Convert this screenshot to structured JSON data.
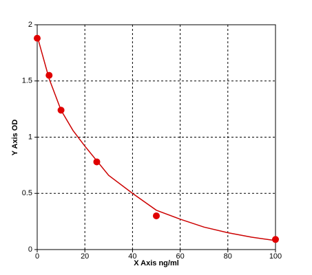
{
  "chart_data": {
    "type": "scatter",
    "x_label": "X Axis ng/ml",
    "y_label": "Y Axis OD",
    "xlim": [
      0,
      100
    ],
    "ylim": [
      0,
      2
    ],
    "xticks": [
      0,
      20,
      40,
      60,
      80,
      100
    ],
    "yticks": [
      0,
      0.5,
      1,
      1.5,
      2
    ],
    "grid": true,
    "series": [
      {
        "color": "#e00000",
        "x": [
          0,
          5,
          10,
          25,
          50,
          100
        ],
        "values": [
          1.88,
          1.55,
          1.24,
          0.78,
          0.3,
          0.09
        ]
      }
    ],
    "fit": {
      "color": "#cc0000",
      "x": [
        0,
        5,
        10,
        15,
        20,
        30,
        40,
        50,
        60,
        70,
        80,
        90,
        100
      ],
      "values": [
        1.9,
        1.52,
        1.24,
        1.06,
        0.92,
        0.66,
        0.5,
        0.35,
        0.27,
        0.2,
        0.15,
        0.11,
        0.08
      ]
    }
  }
}
